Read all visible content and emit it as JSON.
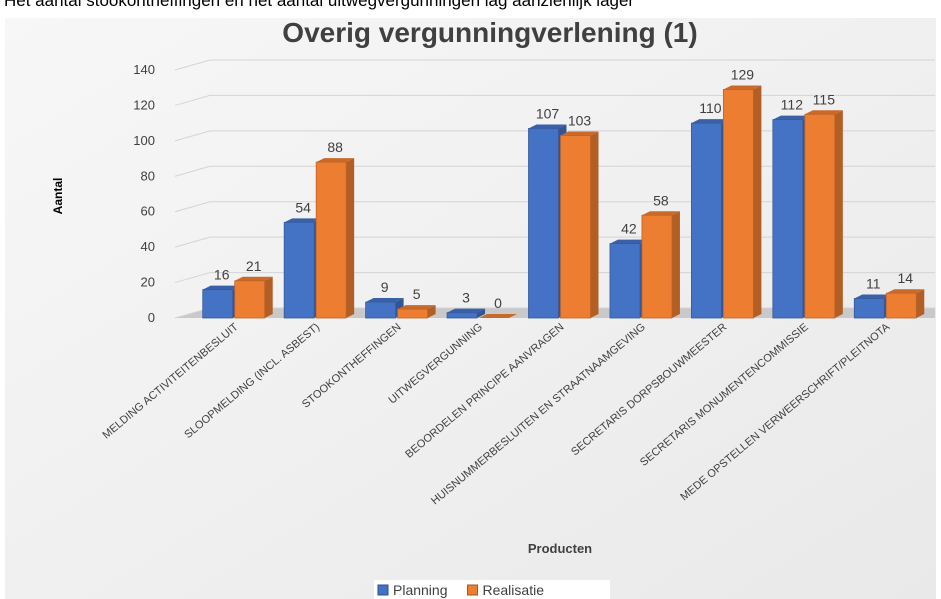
{
  "caption_text": "Het aantal stookontheffingen en het aantal uitwegvergunningen lag aanzienlijk lager",
  "chart_data": {
    "type": "bar",
    "title": "Overig vergunningverlening (1)",
    "y_label": "Aantal",
    "x_label": "Producten",
    "categories": [
      "MELDING ACTIVITEITENBESLUIT",
      "SLOOPMELDING (INCL. ASBEST)",
      "STOOKONTHEFFINGEN",
      "UITWEGVERGUNNING",
      "BEOORDELEN PRINCIPE AANVRAGEN",
      "HUISNUMMERBESLUITEN EN STRAATNAAMGEVING",
      "SECRETARIS DORPSBOUWMEESTER",
      "SECRETARIS MONUMENTENCOMMISSIE",
      "MEDE OPSTELLEN VERWEERSCHRIFT/PLEITNOTA"
    ],
    "series": [
      {
        "name": "Planning",
        "color": "#4472c4",
        "values": [
          16,
          54,
          9,
          3,
          107,
          42,
          110,
          112,
          11
        ]
      },
      {
        "name": "Realisatie",
        "color": "#ed7d31",
        "values": [
          21,
          88,
          5,
          0,
          103,
          58,
          129,
          115,
          14
        ]
      }
    ],
    "ylim": [
      0,
      140
    ],
    "yticks": [
      0,
      20,
      40,
      60,
      80,
      100,
      120,
      140
    ],
    "grid": true,
    "legend": "bottom"
  }
}
